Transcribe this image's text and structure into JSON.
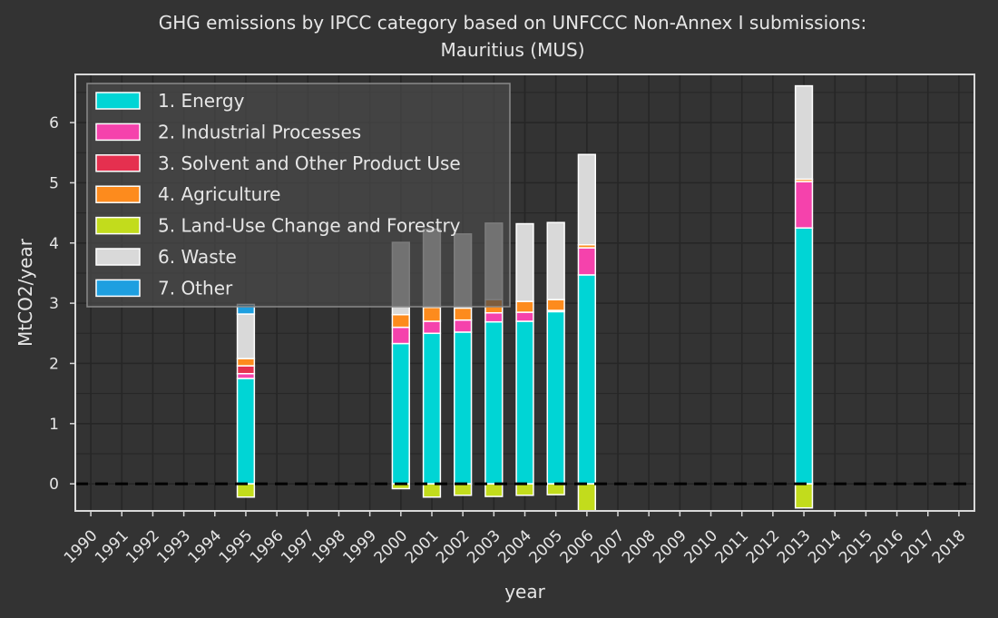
{
  "chart_data": {
    "type": "bar",
    "stacked": true,
    "title": "GHG emissions by IPCC category based on UNFCCC Non-Annex I submissions:",
    "subtitle": "Mauritius (MUS)",
    "xlabel": "year",
    "ylabel": "MtCO2/year",
    "ylim": [
      -0.45,
      6.8
    ],
    "yticks": [
      0,
      1,
      2,
      3,
      4,
      5,
      6
    ],
    "grid": true,
    "legend_position": "top-left",
    "zero_line": "dashed",
    "categories": [
      "1990",
      "1991",
      "1992",
      "1993",
      "1994",
      "1995",
      "1996",
      "1997",
      "1998",
      "1999",
      "2000",
      "2001",
      "2002",
      "2003",
      "2004",
      "2005",
      "2006",
      "2007",
      "2008",
      "2009",
      "2010",
      "2011",
      "2012",
      "2013",
      "2014",
      "2015",
      "2016",
      "2017",
      "2018"
    ],
    "series": [
      {
        "name": "1. Energy",
        "color": "#00d5d5",
        "values": [
          null,
          null,
          null,
          null,
          null,
          1.75,
          null,
          null,
          null,
          null,
          2.33,
          2.5,
          2.52,
          2.69,
          2.7,
          2.86,
          3.47,
          null,
          null,
          null,
          null,
          null,
          null,
          4.25,
          null,
          null,
          null,
          null,
          null
        ]
      },
      {
        "name": "2. Industrial Processes",
        "color": "#f542ac",
        "values": [
          null,
          null,
          null,
          null,
          null,
          0.08,
          null,
          null,
          null,
          null,
          0.27,
          0.2,
          0.2,
          0.15,
          0.15,
          0.02,
          0.45,
          null,
          null,
          null,
          null,
          null,
          null,
          0.77,
          null,
          null,
          null,
          null,
          null
        ]
      },
      {
        "name": "3. Solvent and Other Product Use",
        "color": "#e5304f",
        "values": [
          null,
          null,
          null,
          null,
          null,
          0.13,
          null,
          null,
          null,
          null,
          0.0,
          0.0,
          0.0,
          0.0,
          0.0,
          0.0,
          0.0,
          null,
          null,
          null,
          null,
          null,
          null,
          0.0,
          null,
          null,
          null,
          null,
          null
        ]
      },
      {
        "name": "4. Agriculture",
        "color": "#fd8b1d",
        "values": [
          null,
          null,
          null,
          null,
          null,
          0.12,
          null,
          null,
          null,
          null,
          0.21,
          0.23,
          0.2,
          0.22,
          0.18,
          0.18,
          0.05,
          null,
          null,
          null,
          null,
          null,
          null,
          0.04,
          null,
          null,
          null,
          null,
          null
        ]
      },
      {
        "name": "5. Land-Use Change and Forestry",
        "color": "#c2dc1c",
        "values": [
          null,
          null,
          null,
          null,
          null,
          -0.22,
          null,
          null,
          null,
          null,
          -0.08,
          -0.22,
          -0.19,
          -0.21,
          -0.19,
          -0.18,
          -0.45,
          null,
          null,
          null,
          null,
          null,
          null,
          -0.4,
          null,
          null,
          null,
          null,
          null
        ]
      },
      {
        "name": "6. Waste",
        "color": "#d9d9d9",
        "values": [
          null,
          null,
          null,
          null,
          null,
          0.74,
          null,
          null,
          null,
          null,
          1.2,
          1.3,
          1.23,
          1.27,
          1.29,
          1.28,
          1.5,
          null,
          null,
          null,
          null,
          null,
          null,
          1.55,
          null,
          null,
          null,
          null,
          null
        ]
      },
      {
        "name": "7. Other",
        "color": "#1e9fe0",
        "values": [
          null,
          null,
          null,
          null,
          null,
          0.16,
          null,
          null,
          null,
          null,
          0.0,
          0.0,
          0.0,
          0.0,
          0.0,
          0.0,
          0.0,
          null,
          null,
          null,
          null,
          null,
          null,
          0.0,
          null,
          null,
          null,
          null,
          null
        ]
      }
    ]
  }
}
